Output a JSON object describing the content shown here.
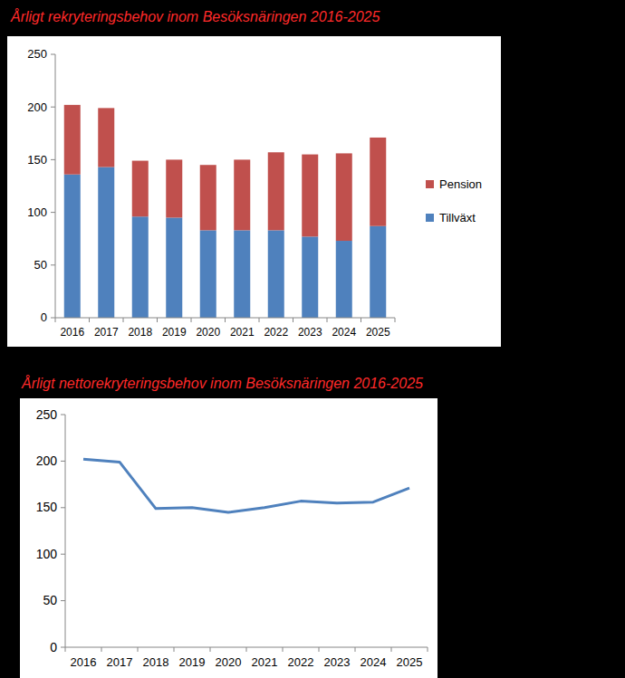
{
  "chart_data": [
    {
      "type": "bar",
      "title": "Årligt rekryteringsbehov inom Besöksnäringen 2016-2025",
      "stacked": true,
      "legend": "right",
      "grid": false,
      "categories": [
        "2016",
        "2017",
        "2018",
        "2019",
        "2020",
        "2021",
        "2022",
        "2023",
        "2024",
        "2025"
      ],
      "series": [
        {
          "name": "Tillväxt",
          "color": "#4f81bd",
          "values": [
            136,
            143,
            96,
            95,
            83,
            83,
            83,
            77,
            73,
            87
          ]
        },
        {
          "name": "Pension",
          "color": "#c0504d",
          "values": [
            66,
            56,
            53,
            55,
            62,
            67,
            74,
            78,
            83,
            84
          ]
        }
      ],
      "ylim": [
        0,
        250
      ],
      "yticks": [
        0,
        50,
        100,
        150,
        200,
        250
      ]
    },
    {
      "type": "line",
      "title": "Årligt nettorekryteringsbehov inom Besöksnäringen 2016-2025",
      "grid": false,
      "color": "#4f81bd",
      "categories": [
        "2016",
        "2017",
        "2018",
        "2019",
        "2020",
        "2021",
        "2022",
        "2023",
        "2024",
        "2025"
      ],
      "values": [
        202,
        199,
        149,
        150,
        145,
        150,
        157,
        155,
        156,
        171
      ],
      "ylim": [
        0,
        250
      ],
      "yticks": [
        0,
        50,
        100,
        150,
        200,
        250
      ]
    }
  ]
}
